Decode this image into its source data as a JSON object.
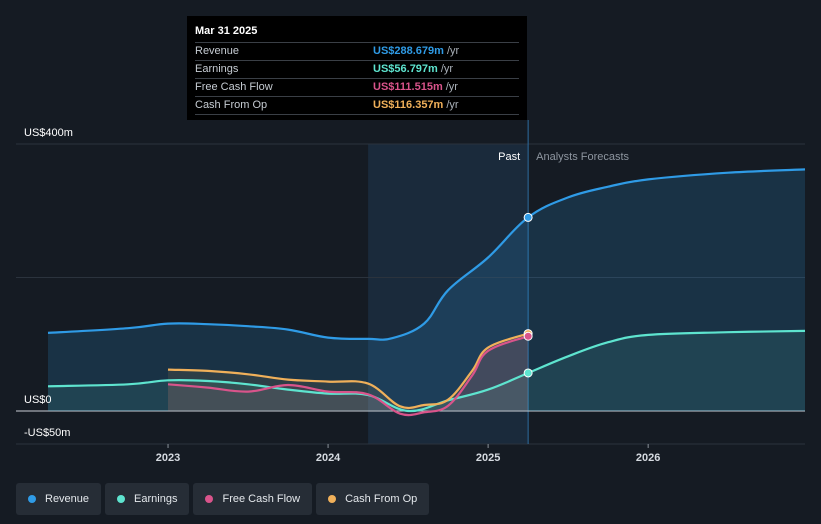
{
  "tooltip": {
    "date": "Mar 31 2025",
    "rows": [
      {
        "label": "Revenue",
        "value": "US$288.679m",
        "unit": "/yr",
        "color": "#2f9be6"
      },
      {
        "label": "Earnings",
        "value": "US$56.797m",
        "unit": "/yr",
        "color": "#5ee4cf"
      },
      {
        "label": "Free Cash Flow",
        "value": "US$111.515m",
        "unit": "/yr",
        "color": "#d9548b"
      },
      {
        "label": "Cash From Op",
        "value": "US$116.357m",
        "unit": "/yr",
        "color": "#f0b05a"
      }
    ]
  },
  "legend": [
    {
      "label": "Revenue",
      "color": "#2f9be6"
    },
    {
      "label": "Earnings",
      "color": "#5ee4cf"
    },
    {
      "label": "Free Cash Flow",
      "color": "#d9548b"
    },
    {
      "label": "Cash From Op",
      "color": "#f0b05a"
    }
  ],
  "chart_data": {
    "type": "line",
    "y_axis_labels": [
      "US$400m",
      "US$0",
      "-US$50m"
    ],
    "ylim": [
      -50,
      400
    ],
    "xlim": [
      2022.25,
      2026.98
    ],
    "x_tick_labels": [
      "2023",
      "2024",
      "2025",
      "2026"
    ],
    "x_ticks": [
      2023,
      2024,
      2025,
      2026
    ],
    "past_label": "Past",
    "forecast_label": "Analysts Forecasts",
    "past_region": [
      2024.25,
      2025.25
    ],
    "current_x": 2025.25,
    "series": [
      {
        "name": "Revenue",
        "color": "#2f9be6",
        "x": [
          2022.25,
          2022.75,
          2023.0,
          2023.25,
          2023.5,
          2023.75,
          2024.0,
          2024.25,
          2024.4,
          2024.6,
          2024.75,
          2025.0,
          2025.25,
          2025.5,
          2025.75,
          2026.0,
          2026.5,
          2026.98
        ],
        "y": [
          117,
          124,
          131,
          130,
          127,
          122,
          110,
          108,
          109,
          131,
          181,
          230,
          290,
          320,
          336,
          347,
          357,
          362
        ]
      },
      {
        "name": "Earnings",
        "color": "#5ee4cf",
        "x": [
          2022.25,
          2022.75,
          2023.0,
          2023.25,
          2023.5,
          2023.75,
          2024.0,
          2024.25,
          2024.5,
          2024.75,
          2025.0,
          2025.25,
          2025.5,
          2025.75,
          2026.0,
          2026.5,
          2026.98
        ],
        "y": [
          37,
          40,
          46,
          45,
          40,
          32,
          26,
          24,
          0,
          16,
          32,
          57,
          82,
          103,
          114,
          118,
          120
        ]
      },
      {
        "name": "Free Cash Flow",
        "color": "#d9548b",
        "x": [
          2023.0,
          2023.25,
          2023.5,
          2023.75,
          2024.0,
          2024.25,
          2024.45,
          2024.6,
          2024.75,
          2024.9,
          2025.0,
          2025.25
        ],
        "y": [
          40,
          35,
          29,
          39,
          29,
          25,
          -4,
          -2,
          8,
          53,
          90,
          112
        ]
      },
      {
        "name": "Cash From Op",
        "color": "#f0b05a",
        "x": [
          2023.0,
          2023.25,
          2023.5,
          2023.75,
          2024.0,
          2024.25,
          2024.45,
          2024.6,
          2024.75,
          2024.9,
          2025.0,
          2025.25
        ],
        "y": [
          62,
          60,
          55,
          47,
          44,
          41,
          7,
          9,
          17,
          60,
          95,
          116
        ]
      }
    ]
  }
}
